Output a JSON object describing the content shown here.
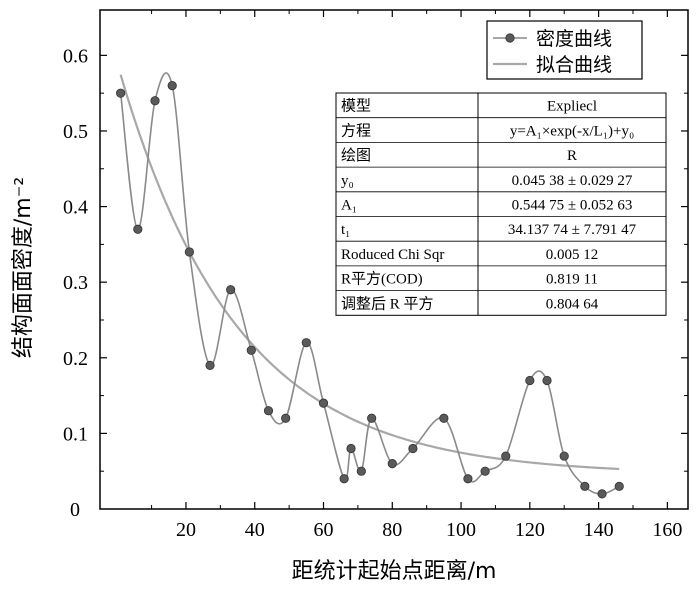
{
  "chart_data": {
    "type": "scatter",
    "xlabel": "距统计起始点距离/m",
    "ylabel": "结构面面密度/m⁻²",
    "xlim": [
      -5,
      166
    ],
    "ylim": [
      0,
      0.66
    ],
    "x_ticks": [
      20,
      40,
      60,
      80,
      100,
      120,
      140,
      160
    ],
    "y_ticks": [
      0.1,
      0.2,
      0.3,
      0.4,
      0.5,
      0.6
    ],
    "y_zero_label": "0",
    "grid": false,
    "legend_position": "top-right",
    "series": [
      {
        "name": "密度曲线",
        "style": "smooth-line-with-markers",
        "color": "#8a8a8a",
        "marker_color": "#5a5a5a",
        "x": [
          1,
          6,
          11,
          16,
          21,
          27,
          33,
          39,
          44,
          49,
          55,
          60,
          66,
          68,
          71,
          74,
          80,
          86,
          95,
          102,
          107,
          113,
          120,
          125,
          130,
          136,
          141,
          146
        ],
        "y": [
          0.55,
          0.37,
          0.54,
          0.56,
          0.34,
          0.19,
          0.29,
          0.21,
          0.13,
          0.12,
          0.22,
          0.14,
          0.04,
          0.08,
          0.05,
          0.12,
          0.06,
          0.08,
          0.12,
          0.04,
          0.05,
          0.07,
          0.17,
          0.17,
          0.07,
          0.03,
          0.02,
          0.03
        ]
      },
      {
        "name": "拟合曲线",
        "style": "line",
        "color": "#a8a8a8",
        "model": {
          "y0": 0.04538,
          "A1": 0.54475,
          "t1": 34.13774
        },
        "x_range": [
          1,
          146
        ]
      }
    ],
    "stats_table": {
      "rows": [
        {
          "label": "模型",
          "value": "Expliecl"
        },
        {
          "label": "方程",
          "value": "y=A₁×exp(-x/L₁)+y₀"
        },
        {
          "label": "绘图",
          "value": "R"
        },
        {
          "label": "y₀",
          "value": "0.045 38 ± 0.029 27"
        },
        {
          "label": "A₁",
          "value": "0.544 75 ± 0.052 63"
        },
        {
          "label": "t₁",
          "value": "34.137 74 ± 7.791 47"
        },
        {
          "label": "Roduced Chi Sqr",
          "value": "0.005 12"
        },
        {
          "label": "R平方(COD)",
          "value": "0.819 11"
        },
        {
          "label": "调整后 R 平方",
          "value": "0.804 64"
        }
      ]
    }
  }
}
